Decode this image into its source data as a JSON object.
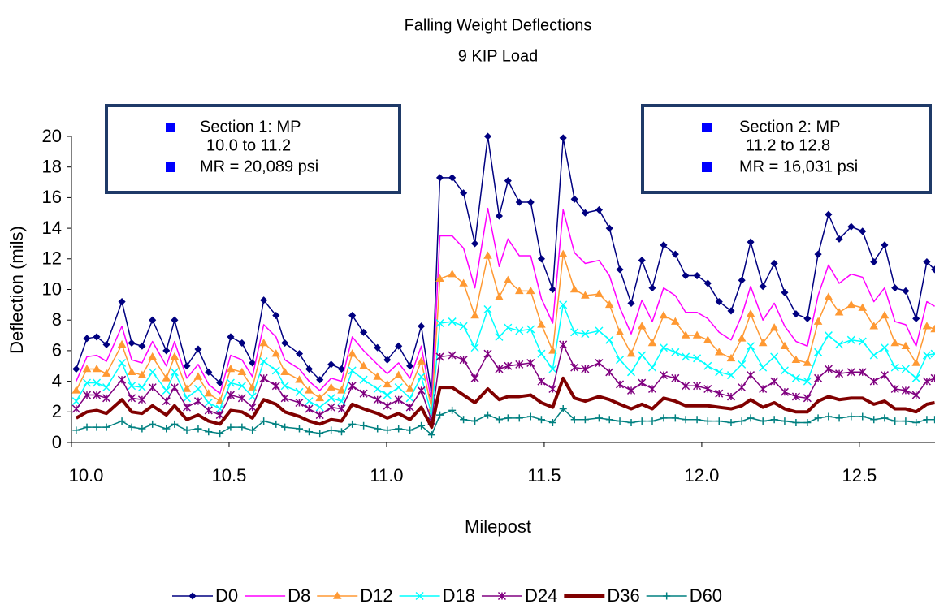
{
  "chart_data": {
    "type": "line",
    "title": "Falling Weight Deflections",
    "subtitle": "9 KIP Load",
    "x_label": "Milepost",
    "y_label": "Deflection (mils)",
    "xlim": [
      10.0,
      12.74
    ],
    "xticks": [
      {
        "value": 10.0,
        "label": "10.0"
      },
      10.5,
      {
        "value": 11.0,
        "label": "11.0"
      },
      11.5,
      {
        "value": 12.0,
        "label": "12.0"
      },
      12.5
    ],
    "ylim": [
      0,
      20
    ],
    "yticks": [
      0,
      2,
      4,
      6,
      8,
      10,
      12,
      14,
      16,
      18,
      20
    ],
    "grid": false,
    "legend": "bottom",
    "annotations": [
      {
        "lines": [
          "Section 1:  MP",
          "10.0 to 11.2",
          "MR = 20,089 psi"
        ]
      },
      {
        "lines": [
          "Section 2:  MP",
          "11.2 to 12.8",
          "MR =  16,031 psi"
        ]
      }
    ],
    "x": [
      10.015,
      10.049,
      10.08,
      10.111,
      10.16,
      10.191,
      10.224,
      10.257,
      10.301,
      10.327,
      10.366,
      10.402,
      10.435,
      10.471,
      10.505,
      10.541,
      10.574,
      10.61,
      10.649,
      10.677,
      10.723,
      10.754,
      10.788,
      10.824,
      10.857,
      10.891,
      10.927,
      10.971,
      11.002,
      11.038,
      11.074,
      11.11,
      11.143,
      11.169,
      11.208,
      11.244,
      11.28,
      11.321,
      11.357,
      11.385,
      11.421,
      11.457,
      11.491,
      11.527,
      11.56,
      11.596,
      11.63,
      11.674,
      11.707,
      11.74,
      11.776,
      11.81,
      11.843,
      11.879,
      11.916,
      11.949,
      11.985,
      12.019,
      12.055,
      12.093,
      12.127,
      12.155,
      12.194,
      12.23,
      12.263,
      12.299,
      12.335,
      12.369,
      12.402,
      12.436,
      12.474,
      12.51,
      12.546,
      12.58,
      12.613,
      12.647,
      12.68,
      12.714,
      12.739
    ],
    "series": [
      {
        "name": "D0",
        "color": "#000080",
        "marker": "diamond",
        "width": 1.5,
        "values": [
          4.8,
          6.8,
          6.9,
          6.4,
          9.2,
          6.5,
          6.3,
          8.0,
          6.0,
          8.0,
          5.0,
          6.1,
          4.6,
          3.9,
          6.9,
          6.5,
          5.2,
          9.3,
          8.3,
          6.5,
          5.8,
          4.8,
          4.1,
          5.1,
          4.8,
          8.3,
          7.2,
          6.2,
          5.4,
          6.3,
          5.0,
          7.6,
          3.1,
          17.3,
          17.3,
          16.3,
          13.0,
          20.0,
          14.8,
          17.1,
          15.7,
          15.7,
          12.0,
          10.0,
          19.9,
          15.9,
          15.0,
          15.2,
          14.0,
          11.3,
          9.1,
          11.9,
          10.1,
          12.9,
          12.3,
          10.9,
          10.9,
          10.4,
          9.2,
          8.6,
          10.6,
          13.1,
          10.2,
          11.7,
          9.8,
          8.4,
          8.1,
          12.3,
          14.9,
          13.3,
          14.1,
          13.8,
          11.8,
          12.9,
          10.1,
          9.9,
          8.1,
          11.8,
          11.3
        ]
      },
      {
        "name": "D8",
        "color": "#ff00ff",
        "marker": "none",
        "width": 1.5,
        "values": [
          4.0,
          5.6,
          5.7,
          5.3,
          7.6,
          5.4,
          5.2,
          6.6,
          5.0,
          6.6,
          4.2,
          5.1,
          3.8,
          3.2,
          5.7,
          5.4,
          4.3,
          7.7,
          6.9,
          5.4,
          4.8,
          4.0,
          3.4,
          4.2,
          4.0,
          6.9,
          6.0,
          5.1,
          4.5,
          5.2,
          4.2,
          6.3,
          2.6,
          13.5,
          13.5,
          12.7,
          10.1,
          15.3,
          11.5,
          13.3,
          12.2,
          12.2,
          9.4,
          7.8,
          15.2,
          12.4,
          11.7,
          11.9,
          10.9,
          8.8,
          7.1,
          9.3,
          7.9,
          10.1,
          9.6,
          8.5,
          8.5,
          8.1,
          7.2,
          6.7,
          8.3,
          10.2,
          8.0,
          9.1,
          7.6,
          6.6,
          6.3,
          9.6,
          11.6,
          10.4,
          11.0,
          10.8,
          9.2,
          10.1,
          7.9,
          7.7,
          6.3,
          9.2,
          8.9
        ]
      },
      {
        "name": "D12",
        "color": "#ff9933",
        "marker": "triangle",
        "width": 1.5,
        "values": [
          3.4,
          4.8,
          4.8,
          4.5,
          6.4,
          4.6,
          4.4,
          5.6,
          4.2,
          5.6,
          3.5,
          4.3,
          3.2,
          2.7,
          4.8,
          4.6,
          3.6,
          6.5,
          5.8,
          4.6,
          4.1,
          3.4,
          2.9,
          3.6,
          3.4,
          5.8,
          5.0,
          4.3,
          3.8,
          4.4,
          3.5,
          5.3,
          2.2,
          10.7,
          11.0,
          10.4,
          8.3,
          12.2,
          9.5,
          10.6,
          9.9,
          9.9,
          7.7,
          6.0,
          12.3,
          10.0,
          9.6,
          9.7,
          9.0,
          7.2,
          5.8,
          7.6,
          6.5,
          8.3,
          7.9,
          7.0,
          7.0,
          6.7,
          5.9,
          5.5,
          6.8,
          8.4,
          6.5,
          7.5,
          6.3,
          5.4,
          5.2,
          7.9,
          9.5,
          8.5,
          9.0,
          8.8,
          7.6,
          8.3,
          6.5,
          6.3,
          5.2,
          7.6,
          7.4
        ]
      },
      {
        "name": "D18",
        "color": "#00ffff",
        "marker": "x",
        "width": 1.5,
        "values": [
          2.7,
          3.9,
          3.9,
          3.6,
          5.2,
          3.7,
          3.6,
          4.6,
          3.4,
          4.6,
          2.9,
          3.5,
          2.6,
          2.2,
          3.9,
          3.7,
          3.0,
          5.3,
          4.7,
          3.7,
          3.3,
          2.7,
          2.3,
          2.9,
          2.7,
          4.7,
          4.1,
          3.5,
          3.1,
          3.6,
          2.9,
          4.3,
          1.8,
          7.8,
          7.9,
          7.6,
          6.2,
          8.7,
          6.9,
          7.5,
          7.3,
          7.4,
          5.8,
          4.8,
          9.0,
          7.2,
          7.1,
          7.3,
          6.7,
          5.4,
          4.6,
          5.7,
          4.9,
          6.2,
          5.9,
          5.6,
          5.5,
          5.0,
          4.6,
          4.4,
          5.1,
          6.3,
          4.9,
          5.6,
          4.7,
          4.2,
          4.0,
          5.9,
          7.0,
          6.4,
          6.7,
          6.6,
          5.7,
          6.2,
          4.9,
          4.8,
          4.2,
          5.7,
          5.8
        ]
      },
      {
        "name": "D24",
        "color": "#800080",
        "marker": "asterisk",
        "width": 1.5,
        "values": [
          2.2,
          3.1,
          3.1,
          2.9,
          4.1,
          2.9,
          2.8,
          3.6,
          2.7,
          3.6,
          2.3,
          2.7,
          2.1,
          1.8,
          3.1,
          2.9,
          2.3,
          4.2,
          3.7,
          2.9,
          2.6,
          2.2,
          1.8,
          2.3,
          2.2,
          3.7,
          3.2,
          2.8,
          2.4,
          2.8,
          2.3,
          3.4,
          1.4,
          5.6,
          5.7,
          5.4,
          4.2,
          5.8,
          4.8,
          5.0,
          5.1,
          5.2,
          4.0,
          3.5,
          6.4,
          4.9,
          4.8,
          5.2,
          4.6,
          3.8,
          3.4,
          3.9,
          3.5,
          4.4,
          4.2,
          3.7,
          3.7,
          3.5,
          3.2,
          3.0,
          3.6,
          4.4,
          3.5,
          4.0,
          3.3,
          3.0,
          2.9,
          4.2,
          4.8,
          4.5,
          4.6,
          4.6,
          4.0,
          4.4,
          3.5,
          3.4,
          3.1,
          4.0,
          4.2
        ]
      },
      {
        "name": "D36",
        "color": "#800000",
        "marker": "none",
        "width": 4,
        "values": [
          1.6,
          2.0,
          2.1,
          1.9,
          2.8,
          2.0,
          1.9,
          2.4,
          1.8,
          2.4,
          1.5,
          1.8,
          1.4,
          1.2,
          2.1,
          2.0,
          1.6,
          2.8,
          2.5,
          2.0,
          1.7,
          1.4,
          1.2,
          1.5,
          1.4,
          2.5,
          2.2,
          1.9,
          1.6,
          1.9,
          1.5,
          2.3,
          1.0,
          3.6,
          3.6,
          3.1,
          2.6,
          3.5,
          2.8,
          3.0,
          3.0,
          3.1,
          2.6,
          2.3,
          4.2,
          2.9,
          2.7,
          3.0,
          2.8,
          2.5,
          2.2,
          2.5,
          2.2,
          2.9,
          2.7,
          2.4,
          2.4,
          2.4,
          2.3,
          2.2,
          2.4,
          2.8,
          2.3,
          2.6,
          2.2,
          2.0,
          2.0,
          2.7,
          3.0,
          2.8,
          2.9,
          2.9,
          2.5,
          2.7,
          2.2,
          2.2,
          2.0,
          2.5,
          2.6
        ]
      },
      {
        "name": "D60",
        "color": "#008080",
        "marker": "plus",
        "width": 1.5,
        "values": [
          0.8,
          1.0,
          1.0,
          1.0,
          1.4,
          1.0,
          0.9,
          1.2,
          0.9,
          1.2,
          0.8,
          0.9,
          0.7,
          0.6,
          1.0,
          1.0,
          0.8,
          1.4,
          1.2,
          1.0,
          0.9,
          0.7,
          0.6,
          0.8,
          0.7,
          1.2,
          1.1,
          0.9,
          0.8,
          0.9,
          0.8,
          1.1,
          0.5,
          1.8,
          2.1,
          1.5,
          1.4,
          1.8,
          1.5,
          1.6,
          1.6,
          1.7,
          1.5,
          1.3,
          2.2,
          1.5,
          1.5,
          1.6,
          1.5,
          1.4,
          1.3,
          1.4,
          1.4,
          1.6,
          1.6,
          1.5,
          1.5,
          1.4,
          1.4,
          1.3,
          1.4,
          1.6,
          1.4,
          1.5,
          1.4,
          1.3,
          1.3,
          1.6,
          1.7,
          1.6,
          1.7,
          1.7,
          1.5,
          1.6,
          1.4,
          1.4,
          1.3,
          1.5,
          1.5
        ]
      }
    ]
  }
}
